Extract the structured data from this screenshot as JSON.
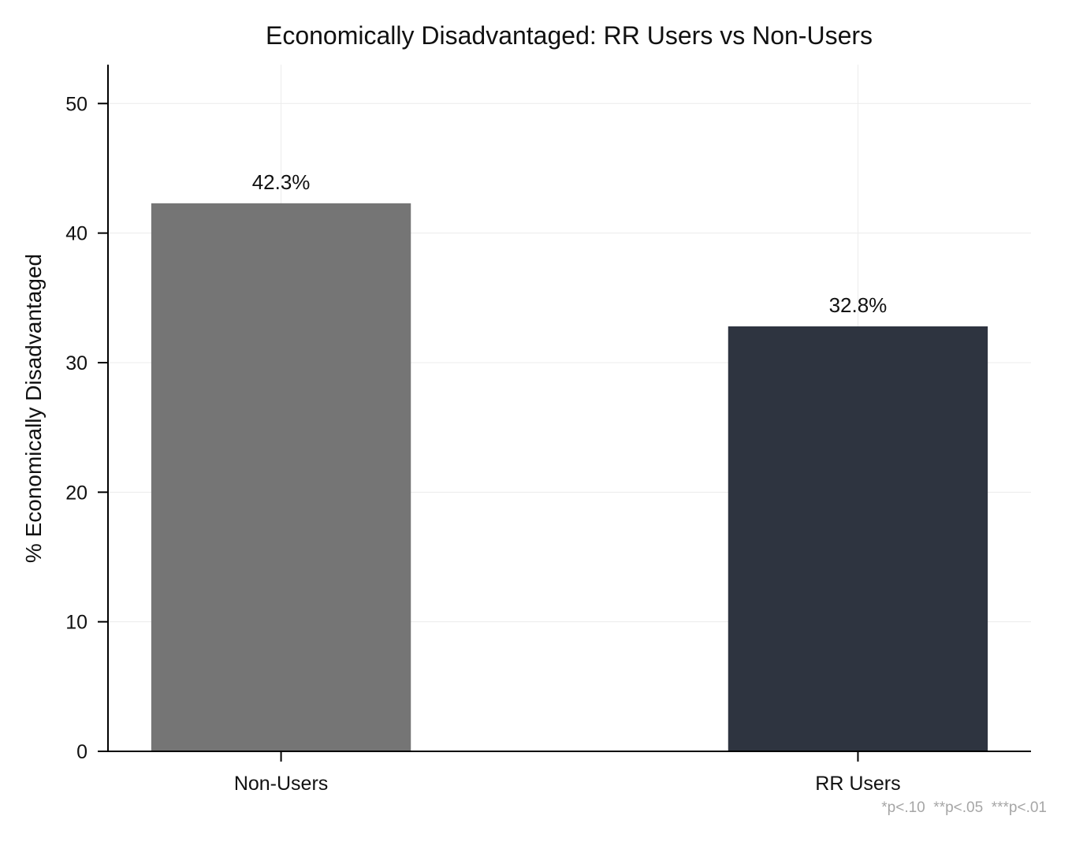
{
  "chart_data": {
    "type": "bar",
    "title": "Economically Disadvantaged: RR Users vs Non-Users",
    "xlabel": "",
    "ylabel": "% Economically Disadvantaged",
    "categories": [
      "Non-Users",
      "RR Users"
    ],
    "values": [
      42.3,
      32.8
    ],
    "data_labels": [
      "42.3%",
      "32.8%"
    ],
    "colors": [
      "#757575",
      "#2e3440"
    ],
    "ylim": [
      0,
      53
    ],
    "yticks": [
      0,
      10,
      20,
      30,
      40,
      50
    ],
    "grid": true,
    "legend": "none",
    "footnote": "*p<.10  **p<.05  ***p<.01"
  }
}
